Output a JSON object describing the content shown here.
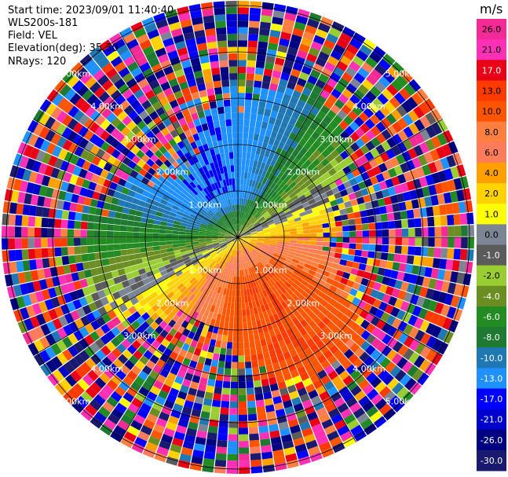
{
  "header": {
    "start_time": "Start time: 2023/09/01 11:40:40",
    "instrument": "WLS200s-181",
    "field": "Field: VEL",
    "elevation": "Elevation(deg): 35.30",
    "nrays": "NRays: 120"
  },
  "chart_data": {
    "type": "heatmap",
    "subtype": "polar-ppi",
    "title": "",
    "field": "VEL",
    "units": "m/s",
    "nrays": 120,
    "elevation_deg": 35.3,
    "range_rings": [
      {
        "label": "1.00km",
        "value": 1.0
      },
      {
        "label": "2.00km",
        "value": 2.0
      },
      {
        "label": "3.00km",
        "value": 3.0
      },
      {
        "label": "4.00km",
        "value": 4.0
      },
      {
        "label": "5.00km",
        "value": 5.0
      }
    ],
    "max_range_km": 5.15,
    "flow_direction_deg": 155,
    "colorbar": {
      "label": "m/s",
      "ticks": [
        "26.0",
        "21.0",
        "17.0",
        "13.0",
        "10.0",
        "8.0",
        "6.0",
        "4.0",
        "2.0",
        "1.0",
        "0.0",
        "-1.0",
        "-2.0",
        "-4.0",
        "-6.0",
        "-8.0",
        "-10.0",
        "-13.0",
        "-17.0",
        "-21.0",
        "-26.0",
        "-30.0"
      ],
      "colors": [
        "#f42b96",
        "#ff2fb6",
        "#e90016",
        "#fd3b00",
        "#ff5500",
        "#ff7f40",
        "#ff7b5a",
        "#ff9f00",
        "#ffd200",
        "#ffff00",
        "#7b8593",
        "#5b5b5b",
        "#9acd32",
        "#6b8e23",
        "#228b22",
        "#1e7a30",
        "#1f77b4",
        "#1e90ff",
        "#0000ff",
        "#0000cd",
        "#000080",
        "#191970"
      ]
    }
  }
}
